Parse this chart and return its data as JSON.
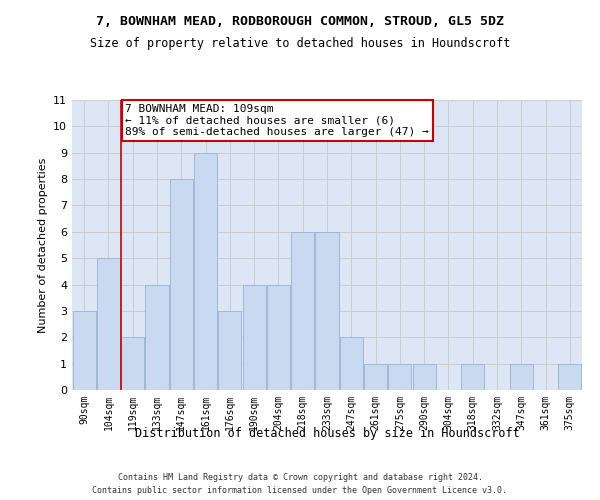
{
  "title": "7, BOWNHAM MEAD, RODBOROUGH COMMON, STROUD, GL5 5DZ",
  "subtitle": "Size of property relative to detached houses in Houndscroft",
  "xlabel": "Distribution of detached houses by size in Houndscroft",
  "ylabel": "Number of detached properties",
  "categories": [
    "90sqm",
    "104sqm",
    "119sqm",
    "133sqm",
    "147sqm",
    "161sqm",
    "176sqm",
    "190sqm",
    "204sqm",
    "218sqm",
    "233sqm",
    "247sqm",
    "261sqm",
    "275sqm",
    "290sqm",
    "304sqm",
    "318sqm",
    "332sqm",
    "347sqm",
    "361sqm",
    "375sqm"
  ],
  "values": [
    3,
    5,
    2,
    4,
    8,
    9,
    3,
    4,
    4,
    6,
    6,
    2,
    1,
    1,
    1,
    0,
    1,
    0,
    1,
    0,
    1
  ],
  "bar_color": "#c9d9f0",
  "bar_edgecolor": "#a0b8d8",
  "annotation_text": "7 BOWNHAM MEAD: 109sqm\n← 11% of detached houses are smaller (6)\n89% of semi-detached houses are larger (47) →",
  "annotation_box_color": "#ffffff",
  "annotation_box_edgecolor": "#cc0000",
  "ylim": [
    0,
    11
  ],
  "yticks": [
    0,
    1,
    2,
    3,
    4,
    5,
    6,
    7,
    8,
    9,
    10,
    11
  ],
  "grid_color": "#cccccc",
  "bg_color": "#dce6f5",
  "footer1": "Contains HM Land Registry data © Crown copyright and database right 2024.",
  "footer2": "Contains public sector information licensed under the Open Government Licence v3.0.",
  "vline_color": "#cc0000",
  "vline_x": 1.5
}
